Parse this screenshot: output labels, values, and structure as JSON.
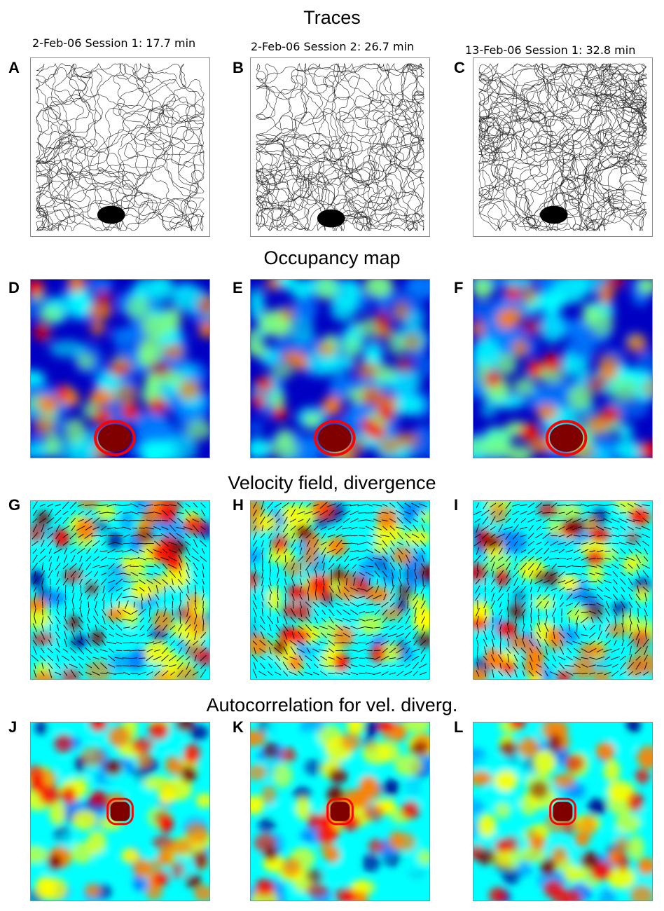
{
  "row_titles": {
    "traces": "Traces",
    "occupancy": "Occupancy map",
    "velocity": "Velocity field, divergence",
    "autocorr": "Autocorrelation for vel. diverg."
  },
  "sessions": [
    "2-Feb-06 Session 1: 17.7 min",
    "2-Feb-06 Session 2: 26.7 min",
    "13-Feb-06 Session 1: 32.8 min"
  ],
  "panel_letters": [
    "A",
    "B",
    "C",
    "D",
    "E",
    "F",
    "G",
    "H",
    "I",
    "J",
    "K",
    "L"
  ],
  "colormap": {
    "name": "jet",
    "stops": [
      "#00008f",
      "#0000ff",
      "#0080ff",
      "#00ffff",
      "#80ff80",
      "#ffff00",
      "#ff8000",
      "#ff0000",
      "#800000"
    ]
  },
  "trace_color": "#000000",
  "arrow_color": "#000000"
}
